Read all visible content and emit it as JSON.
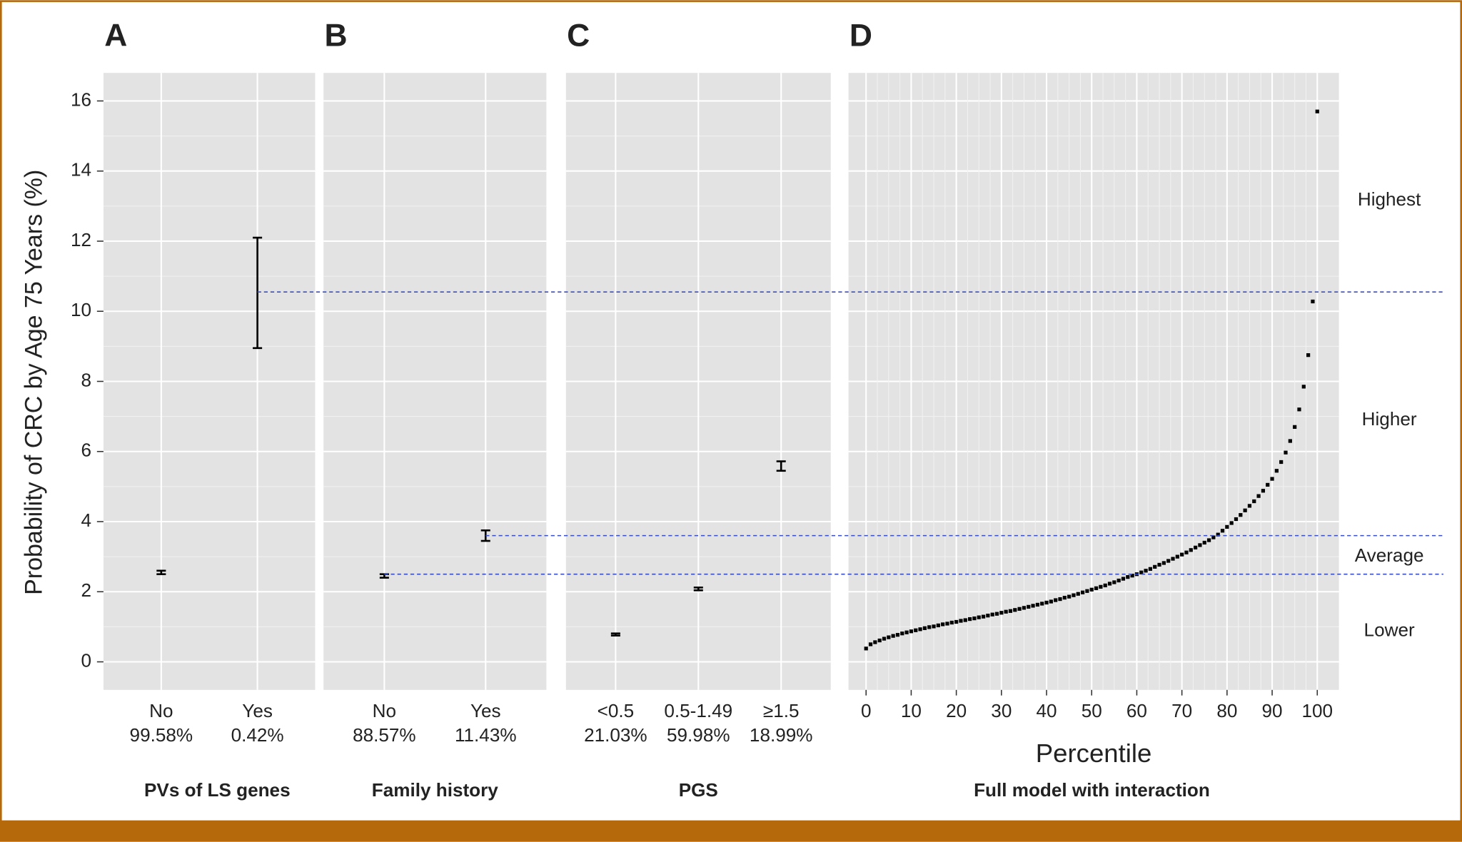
{
  "chart_data": [
    {
      "type": "errorbar",
      "panel_label": "A",
      "x_label": "PVs of LS genes",
      "y_label": "Probability of CRC by Age 75 Years (%)",
      "categories": [
        "No",
        "Yes"
      ],
      "category_shares": [
        "99.58%",
        "0.42%"
      ],
      "values": [
        2.55,
        10.55
      ],
      "lower": [
        2.5,
        8.95
      ],
      "upper": [
        2.6,
        12.1
      ],
      "color": "#000000",
      "ylim": [
        -0.8,
        16.8
      ],
      "yticks": [
        0,
        2,
        4,
        6,
        8,
        10,
        12,
        14,
        16
      ],
      "grid": true
    },
    {
      "type": "errorbar",
      "panel_label": "B",
      "x_label": "Family history",
      "categories": [
        "No",
        "Yes"
      ],
      "category_shares": [
        "88.57%",
        "11.43%"
      ],
      "values": [
        2.45,
        3.6
      ],
      "lower": [
        2.4,
        3.45
      ],
      "upper": [
        2.5,
        3.75
      ],
      "color": "#000000",
      "grid": true
    },
    {
      "type": "errorbar",
      "panel_label": "C",
      "x_label": "PGS",
      "categories": [
        "<0.5",
        "0.5-1.49",
        "≥1.5"
      ],
      "category_shares": [
        "21.03%",
        "59.98%",
        "18.99%"
      ],
      "values": [
        0.78,
        2.08,
        5.58
      ],
      "lower": [
        0.75,
        2.04,
        5.45
      ],
      "upper": [
        0.81,
        2.12,
        5.72
      ],
      "color": "#000000",
      "grid": true
    },
    {
      "type": "scatter",
      "panel_label": "D",
      "x_label": "Full model with interaction",
      "x_axis_title": "Percentile",
      "x": [
        0,
        1,
        2,
        3,
        4,
        5,
        6,
        7,
        8,
        9,
        10,
        11,
        12,
        13,
        14,
        15,
        16,
        17,
        18,
        19,
        20,
        21,
        22,
        23,
        24,
        25,
        26,
        27,
        28,
        29,
        30,
        31,
        32,
        33,
        34,
        35,
        36,
        37,
        38,
        39,
        40,
        41,
        42,
        43,
        44,
        45,
        46,
        47,
        48,
        49,
        50,
        51,
        52,
        53,
        54,
        55,
        56,
        57,
        58,
        59,
        60,
        61,
        62,
        63,
        64,
        65,
        66,
        67,
        68,
        69,
        70,
        71,
        72,
        73,
        74,
        75,
        76,
        77,
        78,
        79,
        80,
        81,
        82,
        83,
        84,
        85,
        86,
        87,
        88,
        89,
        90,
        91,
        92,
        93,
        94,
        95,
        96,
        97,
        98,
        99,
        100
      ],
      "values": [
        0.38,
        0.5,
        0.56,
        0.61,
        0.66,
        0.7,
        0.74,
        0.77,
        0.81,
        0.84,
        0.87,
        0.9,
        0.93,
        0.96,
        0.99,
        1.01,
        1.04,
        1.07,
        1.09,
        1.12,
        1.14,
        1.17,
        1.19,
        1.22,
        1.24,
        1.27,
        1.29,
        1.32,
        1.35,
        1.37,
        1.4,
        1.43,
        1.45,
        1.48,
        1.51,
        1.54,
        1.57,
        1.6,
        1.63,
        1.66,
        1.69,
        1.72,
        1.76,
        1.79,
        1.83,
        1.86,
        1.9,
        1.94,
        1.98,
        2.02,
        2.06,
        2.1,
        2.14,
        2.18,
        2.23,
        2.27,
        2.32,
        2.37,
        2.42,
        2.46,
        2.5,
        2.55,
        2.6,
        2.65,
        2.71,
        2.77,
        2.82,
        2.88,
        2.94,
        3.0,
        3.06,
        3.12,
        3.19,
        3.26,
        3.33,
        3.4,
        3.47,
        3.55,
        3.63,
        3.74,
        3.85,
        3.96,
        4.07,
        4.19,
        4.32,
        4.45,
        4.58,
        4.73,
        4.88,
        5.05,
        5.22,
        5.45,
        5.7,
        5.97,
        6.3,
        6.7,
        7.2,
        7.85,
        8.75,
        10.28,
        15.7
      ],
      "color": "#000000",
      "xlim": [
        -3.9,
        104.8
      ],
      "xticks": [
        0,
        10,
        20,
        30,
        40,
        50,
        60,
        70,
        80,
        90,
        100
      ],
      "grid": true,
      "reference_lines": [
        10.55,
        3.6,
        2.5
      ],
      "reference_color": "#3a4fc4",
      "region_labels": [
        "Highest",
        "Higher",
        "Average",
        "Lower"
      ]
    }
  ]
}
